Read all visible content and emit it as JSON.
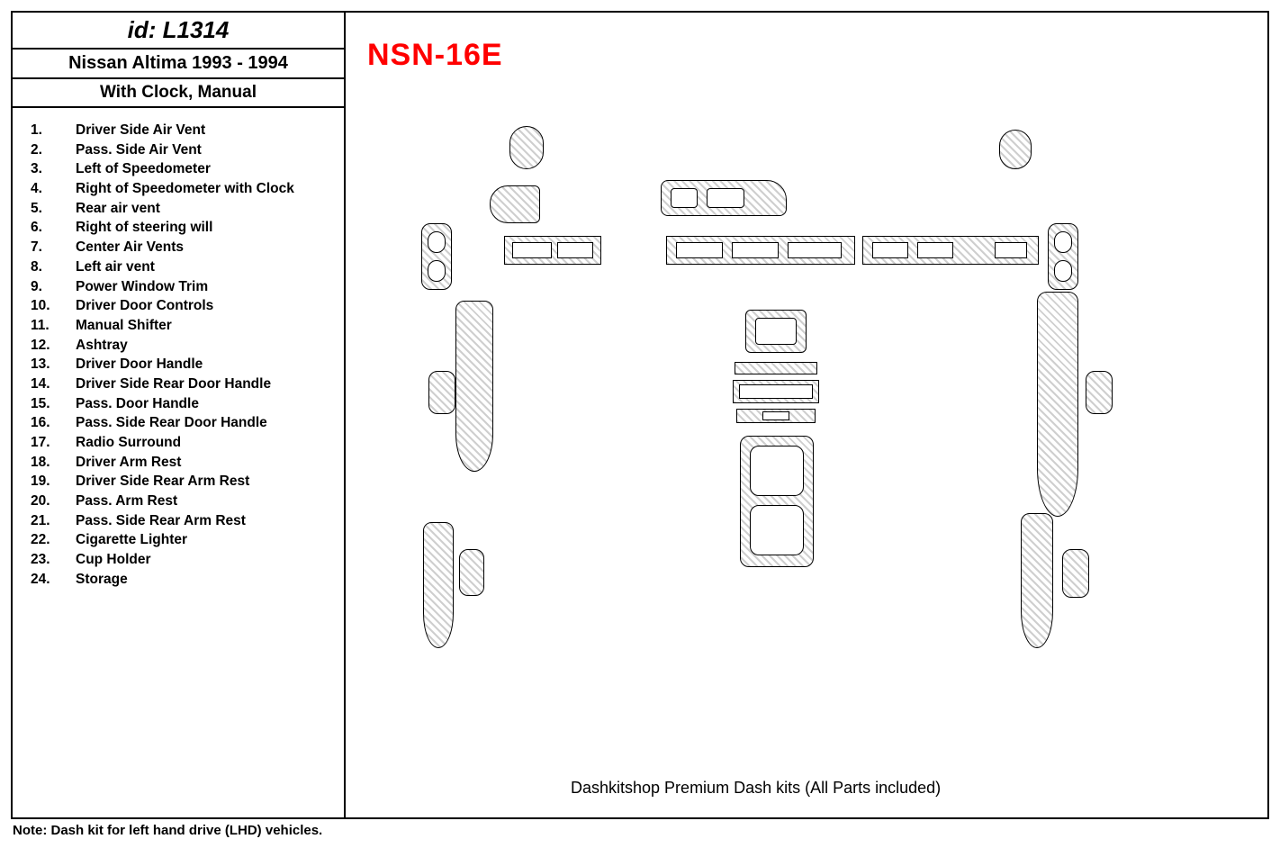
{
  "header": {
    "id_label": "id: L1314",
    "model": "Nissan Altima 1993 - 1994",
    "subtitle": "With Clock, Manual"
  },
  "code": "NSN-16E",
  "footer": "Dashkitshop Premium Dash kits (All Parts included)",
  "note": "Note: Dash kit for left hand drive (LHD)  vehicles.",
  "parts": [
    {
      "n": "1.",
      "t": "Driver Side Air Vent"
    },
    {
      "n": "2.",
      "t": "Pass. Side Air Vent"
    },
    {
      "n": "3.",
      "t": "Left of Speedometer"
    },
    {
      "n": "4.",
      "t": "Right of Speedometer with Clock"
    },
    {
      "n": "5.",
      "t": "Rear air vent"
    },
    {
      "n": "6.",
      "t": "Right of steering will"
    },
    {
      "n": "7.",
      "t": "Center Air Vents"
    },
    {
      "n": "8.",
      "t": "Left air vent"
    },
    {
      "n": "9.",
      "t": "Power Window Trim"
    },
    {
      "n": "10.",
      "t": "Driver Door Controls"
    },
    {
      "n": "11.",
      "t": "Manual Shifter"
    },
    {
      "n": "12.",
      "t": "Ashtray"
    },
    {
      "n": "13.",
      "t": "Driver Door Handle"
    },
    {
      "n": "14.",
      "t": "Driver Side Rear Door Handle"
    },
    {
      "n": "15.",
      "t": "Pass. Door Handle"
    },
    {
      "n": "16.",
      "t": "Pass. Side Rear Door Handle"
    },
    {
      "n": "17.",
      "t": "Radio Surround"
    },
    {
      "n": "18.",
      "t": "Driver Arm Rest"
    },
    {
      "n": "19.",
      "t": " Driver Side Rear Arm Rest"
    },
    {
      "n": "20.",
      "t": "Pass. Arm Rest"
    },
    {
      "n": "21.",
      "t": "Pass. Side Rear Arm Rest"
    },
    {
      "n": "22.",
      "t": "Cigarette Lighter"
    },
    {
      "n": "23.",
      "t": "Cup Holder"
    },
    {
      "n": "24.",
      "t": "Storage"
    }
  ],
  "style": {
    "hatch_fg": "#cfcfcf",
    "hatch_bg": "#ffffff",
    "border_color": "#000000",
    "code_color": "#ff0000",
    "canvas_bg": "#ffffff"
  },
  "shapes_note": "Approximate trim piece rectangles reproduced with CSS. Positions/sizes are visual estimates of the product diagram."
}
